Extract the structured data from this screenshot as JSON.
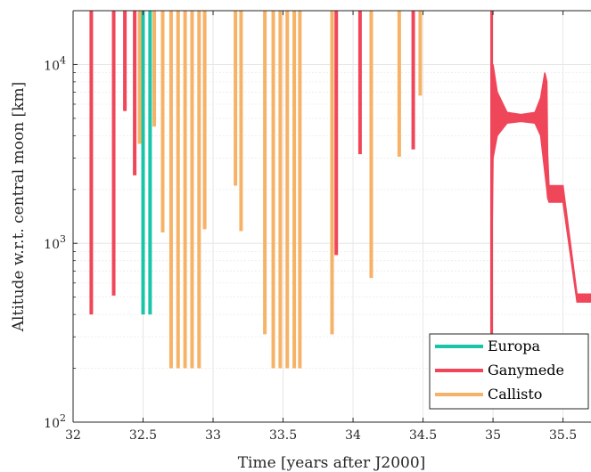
{
  "chart_data": {
    "type": "line",
    "title": "",
    "xlabel": "Time [years after J2000]",
    "ylabel": "Altitude w.r.t. central moon [km]",
    "xlim": [
      32,
      35.7
    ],
    "ylim": [
      100,
      20000
    ],
    "yscale": "log",
    "grid": true,
    "x_ticks": [
      "32",
      "32.5",
      "33",
      "33.5",
      "34",
      "34.5",
      "35",
      "35.5"
    ],
    "y_ticks": [
      {
        "base": "10",
        "exp": "2",
        "value": 100
      },
      {
        "base": "10",
        "exp": "3",
        "value": 1000
      },
      {
        "base": "10",
        "exp": "4",
        "value": 10000
      }
    ],
    "legend": {
      "position": "bottom-right"
    },
    "series": [
      {
        "name": "Europa",
        "color": "#1ac4a8",
        "flybys": [
          {
            "x": 32.5,
            "min_alt": 400
          },
          {
            "x": 32.55,
            "min_alt": 400
          }
        ]
      },
      {
        "name": "Ganymede",
        "color": "#f0465a",
        "flybys": [
          {
            "x": 32.13,
            "min_alt": 400
          },
          {
            "x": 32.29,
            "min_alt": 510
          },
          {
            "x": 32.37,
            "min_alt": 5500
          },
          {
            "x": 32.44,
            "min_alt": 2400
          },
          {
            "x": 33.88,
            "min_alt": 860
          },
          {
            "x": 34.05,
            "min_alt": 3150
          },
          {
            "x": 34.43,
            "min_alt": 3350
          }
        ],
        "orbit": {
          "x": [
            34.985,
            35.0,
            35.03,
            35.1,
            35.2,
            35.3,
            35.34,
            35.37,
            35.385,
            35.39,
            35.4,
            35.45,
            35.5,
            35.6,
            35.7
          ],
          "upper": [
            2000,
            10000,
            7000,
            5400,
            5250,
            5400,
            6500,
            9000,
            8000,
            3200,
            2100,
            2100,
            2100,
            520,
            520
          ],
          "lower": [
            300,
            3000,
            4000,
            4700,
            4800,
            4700,
            4000,
            2500,
            2000,
            1800,
            1700,
            1700,
            1700,
            470,
            470
          ]
        }
      },
      {
        "name": "Callisto",
        "color": "#f6b266",
        "flybys": [
          {
            "x": 32.475,
            "min_alt": 3600
          },
          {
            "x": 32.58,
            "min_alt": 4500
          },
          {
            "x": 32.64,
            "min_alt": 1150
          },
          {
            "x": 32.7,
            "min_alt": 200
          },
          {
            "x": 32.75,
            "min_alt": 200
          },
          {
            "x": 32.8,
            "min_alt": 200
          },
          {
            "x": 32.85,
            "min_alt": 200
          },
          {
            "x": 32.9,
            "min_alt": 200
          },
          {
            "x": 32.94,
            "min_alt": 1200
          },
          {
            "x": 33.16,
            "min_alt": 2100
          },
          {
            "x": 33.2,
            "min_alt": 1170
          },
          {
            "x": 33.37,
            "min_alt": 310
          },
          {
            "x": 33.43,
            "min_alt": 200
          },
          {
            "x": 33.48,
            "min_alt": 200
          },
          {
            "x": 33.53,
            "min_alt": 200
          },
          {
            "x": 33.58,
            "min_alt": 200
          },
          {
            "x": 33.62,
            "min_alt": 200
          },
          {
            "x": 33.85,
            "min_alt": 310
          },
          {
            "x": 34.13,
            "min_alt": 640
          },
          {
            "x": 34.33,
            "min_alt": 3050
          },
          {
            "x": 34.48,
            "min_alt": 6700
          }
        ]
      }
    ]
  }
}
